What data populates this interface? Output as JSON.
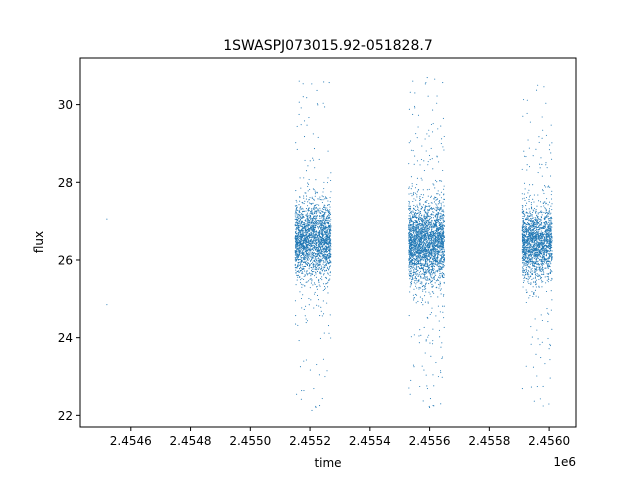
{
  "chart_data": {
    "type": "scatter",
    "title": "1SWASPJ073015.92-051828.7",
    "xlabel": "time",
    "ylabel": "flux",
    "x_offset_label": "1e6",
    "xlim": [
      2.45443,
      2.45609
    ],
    "ylim": [
      21.7,
      31.2
    ],
    "x_ticks": [
      2.4546,
      2.4548,
      2.455,
      2.4552,
      2.4554,
      2.4556,
      2.4558,
      2.456
    ],
    "x_tick_labels": [
      "2.4546",
      "2.4548",
      "2.4550",
      "2.4552",
      "2.4554",
      "2.4556",
      "2.4558",
      "2.4560"
    ],
    "y_ticks": [
      22,
      24,
      26,
      28,
      30
    ],
    "y_tick_labels": [
      "22",
      "24",
      "26",
      "28",
      "30"
    ],
    "grid": false,
    "marker_color": "#1f77b4",
    "series": [
      {
        "points": [
          [
            2.45452,
            27.05
          ],
          [
            2.45452,
            24.85
          ]
        ],
        "clusters": [
          {
            "x_range": [
              2.45515,
              2.45527
            ],
            "y_center": 26.5,
            "y_spread": 0.45,
            "outlier_range": [
              22.1,
              30.8
            ],
            "approx_points": 2200
          },
          {
            "x_range": [
              2.45553,
              2.45565
            ],
            "y_center": 26.45,
            "y_spread": 0.5,
            "outlier_range": [
              22.1,
              30.8
            ],
            "approx_points": 2600
          },
          {
            "x_range": [
              2.45591,
              2.45601
            ],
            "y_center": 26.45,
            "y_spread": 0.45,
            "outlier_range": [
              22.1,
              30.6
            ],
            "approx_points": 1800
          }
        ]
      }
    ]
  }
}
